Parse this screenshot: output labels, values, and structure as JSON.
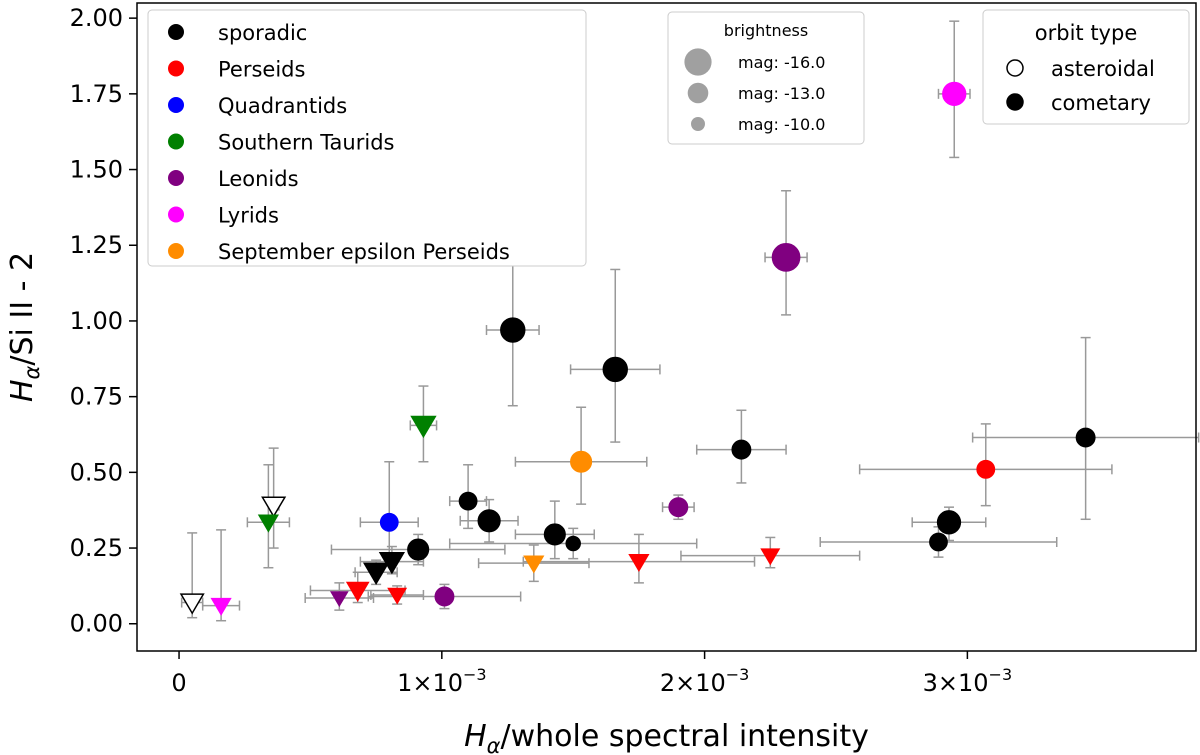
{
  "chart_data": {
    "type": "scatter",
    "xlabel_main": "H",
    "xlabel_sub": "α",
    "xlabel_rest": "/whole spectral intensity",
    "ylabel_main": "H",
    "ylabel_sub": "α",
    "ylabel_rest": "/Si II - 2",
    "xlim": [
      -0.00016,
      0.00387
    ],
    "ylim": [
      -0.09,
      2.05
    ],
    "x_ticks": [
      {
        "value": 0,
        "label": "0",
        "exp": ""
      },
      {
        "value": 0.001,
        "label": "1×10",
        "exp": "−3"
      },
      {
        "value": 0.002,
        "label": "2×10",
        "exp": "−3"
      },
      {
        "value": 0.003,
        "label": "3×10",
        "exp": "−3"
      }
    ],
    "y_ticks": [
      {
        "value": 0,
        "label": "0.00"
      },
      {
        "value": 0.25,
        "label": "0.25"
      },
      {
        "value": 0.5,
        "label": "0.50"
      },
      {
        "value": 0.75,
        "label": "0.75"
      },
      {
        "value": 1.0,
        "label": "1.00"
      },
      {
        "value": 1.25,
        "label": "1.25"
      },
      {
        "value": 1.5,
        "label": "1.50"
      },
      {
        "value": 1.75,
        "label": "1.75"
      },
      {
        "value": 2.0,
        "label": "2.00"
      }
    ],
    "showers": [
      {
        "name": "sporadic",
        "color": "#000000"
      },
      {
        "name": "Perseids",
        "color": "#ff0000"
      },
      {
        "name": "Quadrantids",
        "color": "#0000ff"
      },
      {
        "name": "Southern Taurids",
        "color": "#008000"
      },
      {
        "name": "Leonids",
        "color": "#800080"
      },
      {
        "name": "Lyrids",
        "color": "#ff00ff"
      },
      {
        "name": "September epsilon Perseids",
        "color": "#ff8c00"
      }
    ],
    "legend_shower_placement": "top-left",
    "brightness_legend": {
      "title": "brightness",
      "placement": "top-center",
      "entries": [
        {
          "label": "mag: -16.0",
          "mag": -16.0
        },
        {
          "label": "mag: -13.0",
          "mag": -13.0
        },
        {
          "label": "mag: -10.0",
          "mag": -10.0
        }
      ]
    },
    "orbit_legend": {
      "title": "orbit type",
      "placement": "top-right",
      "entries": [
        {
          "label": "asteroidal",
          "filled": false
        },
        {
          "label": "cometary",
          "filled": true
        }
      ]
    },
    "points": [
      {
        "shower": 0,
        "x": 0.00127,
        "y": 0.97,
        "xerr": 0.0001,
        "yerr_lo": 0.25,
        "yerr_hi": 0.22,
        "mag": -14.5,
        "marker": "circle",
        "filled": true
      },
      {
        "shower": 0,
        "x": 0.00166,
        "y": 0.84,
        "xerr": 0.00017,
        "yerr_lo": 0.24,
        "yerr_hi": 0.33,
        "mag": -14.5,
        "marker": "circle",
        "filled": true
      },
      {
        "shower": 0,
        "x": 0.00214,
        "y": 0.575,
        "xerr": 0.00017,
        "yerr_lo": 0.11,
        "yerr_hi": 0.13,
        "mag": -12.0,
        "marker": "circle",
        "filled": true
      },
      {
        "shower": 0,
        "x": 0.00345,
        "y": 0.615,
        "xerr": 0.00043,
        "yerr_lo": 0.27,
        "yerr_hi": 0.33,
        "mag": -12.0,
        "marker": "circle",
        "filled": true
      },
      {
        "shower": 0,
        "x": 0.00293,
        "y": 0.335,
        "xerr": 0.00014,
        "yerr_lo": 0.06,
        "yerr_hi": 0.05,
        "mag": -14.0,
        "marker": "circle",
        "filled": true
      },
      {
        "shower": 0,
        "x": 0.00289,
        "y": 0.27,
        "xerr": 0.00045,
        "yerr_lo": 0.05,
        "yerr_hi": 0.05,
        "mag": -11.5,
        "marker": "circle",
        "filled": true
      },
      {
        "shower": 0,
        "x": 0.0011,
        "y": 0.405,
        "xerr": 7e-05,
        "yerr_lo": 0.09,
        "yerr_hi": 0.12,
        "mag": -11.5,
        "marker": "circle",
        "filled": true
      },
      {
        "shower": 0,
        "x": 0.00118,
        "y": 0.34,
        "xerr": 0.00011,
        "yerr_lo": 0.07,
        "yerr_hi": 0.07,
        "mag": -13.5,
        "marker": "circle",
        "filled": true
      },
      {
        "shower": 0,
        "x": 0.00143,
        "y": 0.295,
        "xerr": 0.00015,
        "yerr_lo": 0.08,
        "yerr_hi": 0.11,
        "mag": -13.0,
        "marker": "circle",
        "filled": true
      },
      {
        "shower": 0,
        "x": 0.0015,
        "y": 0.265,
        "xerr": 0.00047,
        "yerr_lo": 0.05,
        "yerr_hi": 0.05,
        "mag": -10.0,
        "marker": "circle",
        "filled": true
      },
      {
        "shower": 0,
        "x": 0.00091,
        "y": 0.245,
        "xerr": 0.00033,
        "yerr_lo": 0.05,
        "yerr_hi": 0.05,
        "mag": -13.0,
        "marker": "circle",
        "filled": true
      },
      {
        "shower": 0,
        "x": 0.00081,
        "y": 0.205,
        "xerr": 0.00012,
        "yerr_lo": 0.04,
        "yerr_hi": 0.05,
        "mag": -13.0,
        "marker": "triangle",
        "filled": true
      },
      {
        "shower": 0,
        "x": 0.00075,
        "y": 0.17,
        "xerr": 8e-05,
        "yerr_lo": 0.04,
        "yerr_hi": 0.04,
        "mag": -13.0,
        "marker": "triangle",
        "filled": true
      },
      {
        "shower": 0,
        "x": 0.00036,
        "y": 0.39,
        "xerr": 2e-05,
        "yerr_lo": 0.14,
        "yerr_hi": 0.19,
        "mag": -12.5,
        "marker": "triangle",
        "filled": false
      },
      {
        "shower": 0,
        "x": 5e-05,
        "y": 0.07,
        "xerr": 4e-05,
        "yerr_lo": 0.05,
        "yerr_hi": 0.23,
        "mag": -12.5,
        "marker": "triangle",
        "filled": false
      },
      {
        "shower": 1,
        "x": 0.00307,
        "y": 0.51,
        "xerr": 0.00048,
        "yerr_lo": 0.12,
        "yerr_hi": 0.15,
        "mag": -11.5,
        "marker": "circle",
        "filled": true
      },
      {
        "shower": 1,
        "x": 0.00068,
        "y": 0.11,
        "xerr": 0.00018,
        "yerr_lo": 0.04,
        "yerr_hi": 0.06,
        "mag": -12.0,
        "marker": "triangle",
        "filled": true
      },
      {
        "shower": 1,
        "x": 0.00083,
        "y": 0.095,
        "xerr": 0.0001,
        "yerr_lo": 0.03,
        "yerr_hi": 0.03,
        "mag": -10.5,
        "marker": "triangle",
        "filled": true
      },
      {
        "shower": 1,
        "x": 0.00175,
        "y": 0.205,
        "xerr": 0.00044,
        "yerr_lo": 0.07,
        "yerr_hi": 0.09,
        "mag": -11.0,
        "marker": "triangle",
        "filled": true
      },
      {
        "shower": 1,
        "x": 0.00225,
        "y": 0.225,
        "xerr": 0.00034,
        "yerr_lo": 0.04,
        "yerr_hi": 0.06,
        "mag": -10.5,
        "marker": "triangle",
        "filled": true
      },
      {
        "shower": 2,
        "x": 0.0008,
        "y": 0.335,
        "xerr": 0.00011,
        "yerr_lo": 0.11,
        "yerr_hi": 0.2,
        "mag": -11.5,
        "marker": "circle",
        "filled": true
      },
      {
        "shower": 3,
        "x": 0.00093,
        "y": 0.655,
        "xerr": 5e-05,
        "yerr_lo": 0.12,
        "yerr_hi": 0.13,
        "mag": -13.0,
        "marker": "triangle",
        "filled": true
      },
      {
        "shower": 3,
        "x": 0.00034,
        "y": 0.335,
        "xerr": 8e-05,
        "yerr_lo": 0.15,
        "yerr_hi": 0.19,
        "mag": -11.0,
        "marker": "triangle",
        "filled": true
      },
      {
        "shower": 4,
        "x": 0.00231,
        "y": 1.21,
        "xerr": 8e-05,
        "yerr_lo": 0.19,
        "yerr_hi": 0.22,
        "mag": -16.0,
        "marker": "circle",
        "filled": true
      },
      {
        "shower": 4,
        "x": 0.0019,
        "y": 0.385,
        "xerr": 6e-05,
        "yerr_lo": 0.04,
        "yerr_hi": 0.04,
        "mag": -12.0,
        "marker": "circle",
        "filled": true
      },
      {
        "shower": 4,
        "x": 0.00101,
        "y": 0.09,
        "xerr": 0.00029,
        "yerr_lo": 0.04,
        "yerr_hi": 0.04,
        "mag": -12.0,
        "marker": "circle",
        "filled": true
      },
      {
        "shower": 4,
        "x": 0.00061,
        "y": 0.085,
        "xerr": 0.00013,
        "yerr_lo": 0.04,
        "yerr_hi": 0.05,
        "mag": -10.0,
        "marker": "triangle",
        "filled": true
      },
      {
        "shower": 5,
        "x": 0.00295,
        "y": 1.75,
        "xerr": 6e-05,
        "yerr_lo": 0.21,
        "yerr_hi": 0.24,
        "mag": -14.0,
        "marker": "circle",
        "filled": true
      },
      {
        "shower": 5,
        "x": 0.00016,
        "y": 0.06,
        "xerr": 7e-05,
        "yerr_lo": 0.05,
        "yerr_hi": 0.25,
        "mag": -11.0,
        "marker": "triangle",
        "filled": true
      },
      {
        "shower": 6,
        "x": 0.00153,
        "y": 0.535,
        "xerr": 0.00025,
        "yerr_lo": 0.14,
        "yerr_hi": 0.18,
        "mag": -13.0,
        "marker": "circle",
        "filled": true
      },
      {
        "shower": 6,
        "x": 0.00135,
        "y": 0.2,
        "xerr": 0.00021,
        "yerr_lo": 0.06,
        "yerr_hi": 0.06,
        "mag": -11.0,
        "marker": "triangle",
        "filled": true
      }
    ]
  }
}
